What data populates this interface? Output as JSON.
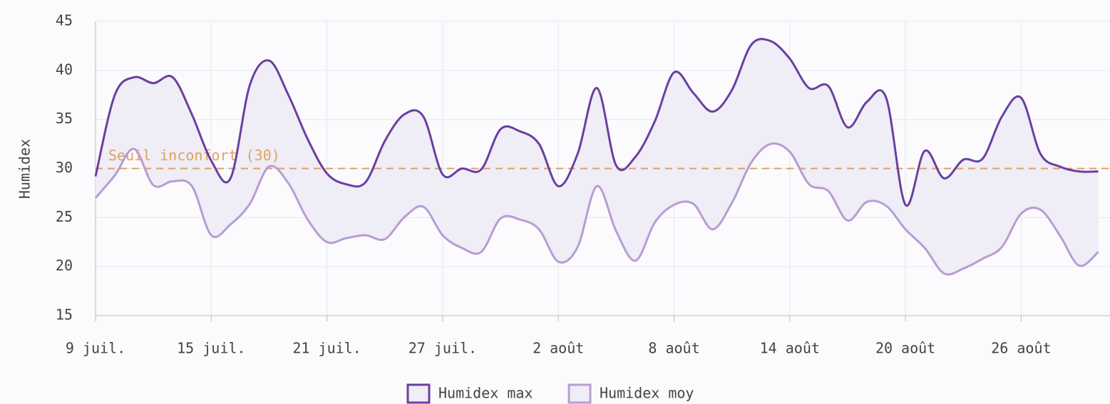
{
  "chart_data": {
    "type": "line",
    "y_label": "Humidex",
    "categories": [
      "9 juil.",
      null,
      null,
      null,
      null,
      null,
      "15 juil.",
      null,
      null,
      null,
      null,
      null,
      "21 juil.",
      null,
      null,
      null,
      null,
      null,
      "27 juil.",
      null,
      null,
      null,
      null,
      null,
      "2 août",
      null,
      null,
      null,
      null,
      null,
      "8 août",
      null,
      null,
      null,
      null,
      null,
      "14 août",
      null,
      null,
      null,
      null,
      null,
      "20 août",
      null,
      null,
      null,
      null,
      null,
      "26 août",
      null,
      null,
      null,
      null
    ],
    "series": [
      {
        "name": "Humidex max",
        "color": "#6b3fa0",
        "values": [
          29.2,
          37.5,
          39.3,
          38.7,
          39.3,
          35.5,
          30.8,
          29,
          38.5,
          41,
          37.5,
          33,
          29.5,
          28.4,
          28.6,
          32.8,
          35.5,
          35.3,
          29.4,
          30,
          29.9,
          34,
          33.8,
          32.5,
          28.2,
          31.5,
          38.2,
          30.3,
          31.2,
          34.8,
          39.8,
          37.7,
          35.8,
          38,
          42.6,
          43,
          41.2,
          38.2,
          38.4,
          34.2,
          36.8,
          37.2,
          26.3,
          31.8,
          29,
          30.9,
          31,
          35.3,
          37.2,
          31.5,
          30.2,
          29.7,
          29.7
        ]
      },
      {
        "name": "Humidex moy",
        "color": "#b89cd4",
        "values": [
          27,
          29.3,
          32,
          28.3,
          28.7,
          28.2,
          23.2,
          24.3,
          26.4,
          30.2,
          28.5,
          24.8,
          22.5,
          22.9,
          23.2,
          22.8,
          25,
          26.1,
          23.2,
          21.9,
          21.5,
          24.9,
          24.8,
          23.8,
          20.5,
          22,
          28.2,
          23.6,
          20.6,
          24.5,
          26.3,
          26.4,
          23.8,
          26.5,
          30.6,
          32.5,
          31.7,
          28.4,
          27.7,
          24.7,
          26.6,
          26.2,
          23.8,
          21.9,
          19.3,
          19.8,
          20.8,
          22,
          25.4,
          25.8,
          23.2,
          20.1,
          21.5
        ]
      }
    ],
    "threshold": {
      "value": 30,
      "label": "Seuil inconfort (30)",
      "color": "#e0a060"
    },
    "band_fill": "#efedf5",
    "ylim": [
      15,
      45
    ],
    "yticks": [
      15,
      20,
      25,
      30,
      35,
      40,
      45
    ],
    "grid": true,
    "legend": "bottom"
  }
}
